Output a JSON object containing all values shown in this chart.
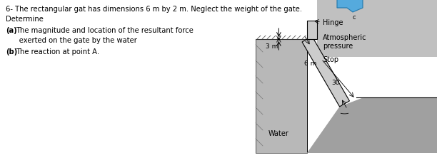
{
  "title_line1": "6- The rectangular gat has dimensions 6 m by 2 m. Neglect the weight of the gate.",
  "title_line2": "Determine",
  "part_a_bold": "(a)",
  "part_a_rest": " The magnitude and location of the resultant force",
  "part_a2": "      exerted on the gate by the water",
  "part_b_bold": "(b)",
  "part_b_rest": " The reaction at point A.",
  "bg_color": "#ffffff",
  "water_fill": "#b0b0b0",
  "wall_fill": "#b8b8b8",
  "gate_fill": "#c8c8c8",
  "ground_fill": "#a0a0a0",
  "hatch_fill": "#888888",
  "text_color": "#000000",
  "label_hinge": "Hinge",
  "label_atm1": "Atmospheric",
  "label_atm2": "pressure",
  "label_stop": "Stop",
  "label_water": "Water",
  "label_3m": "3 m",
  "label_6m": "6 m",
  "label_30": "30",
  "label_c": "c",
  "top_arrow_color": "#55aadd"
}
